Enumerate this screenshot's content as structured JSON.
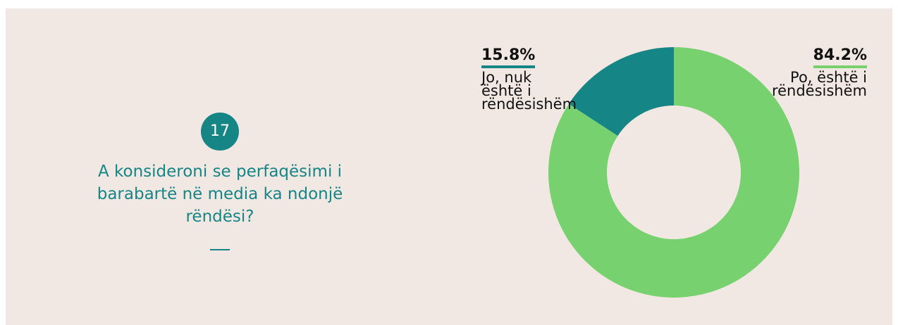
{
  "question": {
    "number": "17",
    "text": "A konsideroni se perfaqësimi i barabartë në media ka ndonjë rëndësi?"
  },
  "chart_data": {
    "type": "pie",
    "donut": true,
    "categories": [
      "Po, është i rëndësishëm",
      "Jo, nuk është i rëndësishëm"
    ],
    "values": [
      84.2,
      15.8
    ],
    "value_labels": [
      "84.2%",
      "15.8%"
    ],
    "colors": [
      "#77d16e",
      "#168585"
    ]
  }
}
